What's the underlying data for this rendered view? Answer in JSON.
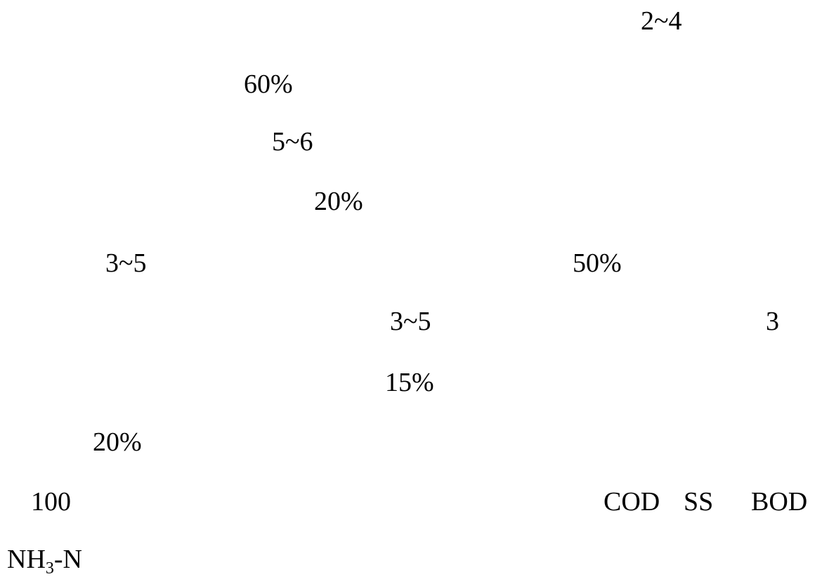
{
  "document": {
    "fragments": {
      "f1": "2~4",
      "f2": "60%",
      "f3": "5~6",
      "f4": "20%",
      "f5": "3~5",
      "f6": "50%",
      "f7": "3~5",
      "f8": "3",
      "f9": "15%",
      "f10": "20%",
      "f11": "100",
      "f12": "COD",
      "f13": "SS",
      "f14": "BOD",
      "f15_main": "NH",
      "f15_sub": "3",
      "f15_tail": "-N"
    }
  }
}
